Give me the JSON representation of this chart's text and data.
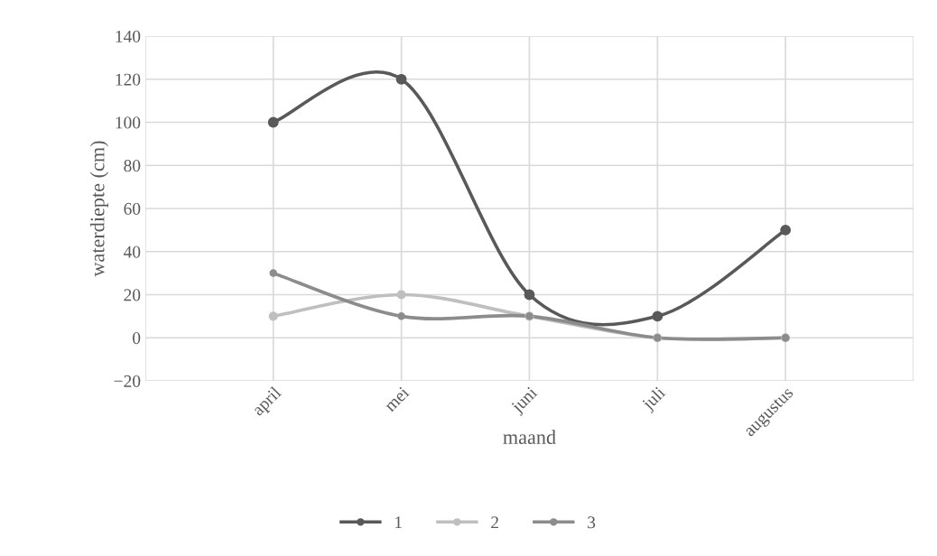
{
  "chart_data": {
    "type": "line",
    "xlabel": "maand",
    "ylabel": "waterdiepte (cm)",
    "categories": [
      null,
      "april",
      "mei",
      "juni",
      "juli",
      "augustus",
      null
    ],
    "series": [
      {
        "name": "1",
        "color": "#595959",
        "values": [
          null,
          100,
          120,
          20,
          10,
          50,
          null
        ]
      },
      {
        "name": "2",
        "color": "#bfbfbf",
        "values": [
          null,
          10,
          20,
          10,
          0,
          0,
          null
        ]
      },
      {
        "name": "3",
        "color": "#8c8c8c",
        "values": [
          null,
          30,
          10,
          10,
          0,
          0,
          null
        ]
      }
    ],
    "ylim": [
      -20,
      140
    ],
    "yticks": [
      {
        "value": -20,
        "label": "−20"
      },
      0,
      20,
      40,
      60,
      80,
      100,
      120,
      140
    ],
    "grid": true,
    "legend": "bottom",
    "marker": "circle",
    "line_style": "solid"
  }
}
